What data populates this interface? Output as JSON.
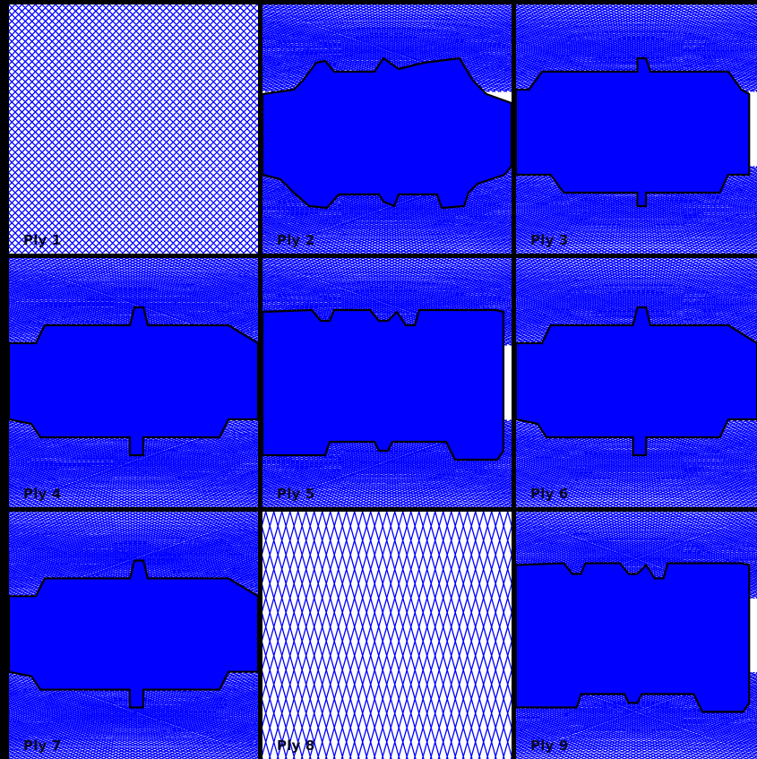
{
  "figure": {
    "colors": {
      "fiber": "#0000ff",
      "solid": "#0000ff",
      "outline": "#000000",
      "frame": "#000000",
      "label": "#0a0a2a"
    },
    "panels": [
      {
        "label": "Ply 1",
        "pattern": "diagonal-mesh",
        "region": "none"
      },
      {
        "label": "Ply 2",
        "pattern": "curved-mesh",
        "region": "blob-asym"
      },
      {
        "label": "Ply 3",
        "pattern": "curved-mesh",
        "region": "blob-top-notch"
      },
      {
        "label": "Ply 4",
        "pattern": "curved-mesh",
        "region": "blob-bottom-notch"
      },
      {
        "label": "Ply 5",
        "pattern": "curved-mesh",
        "region": "rect-notch"
      },
      {
        "label": "Ply 6",
        "pattern": "curved-mesh",
        "region": "blob-bottom-notch"
      },
      {
        "label": "Ply 7",
        "pattern": "curved-mesh",
        "region": "blob-bottom-notch"
      },
      {
        "label": "Ply 8",
        "pattern": "steep-mesh",
        "region": "none"
      },
      {
        "label": "Ply 9",
        "pattern": "curved-mesh",
        "region": "rect-notch"
      }
    ]
  }
}
